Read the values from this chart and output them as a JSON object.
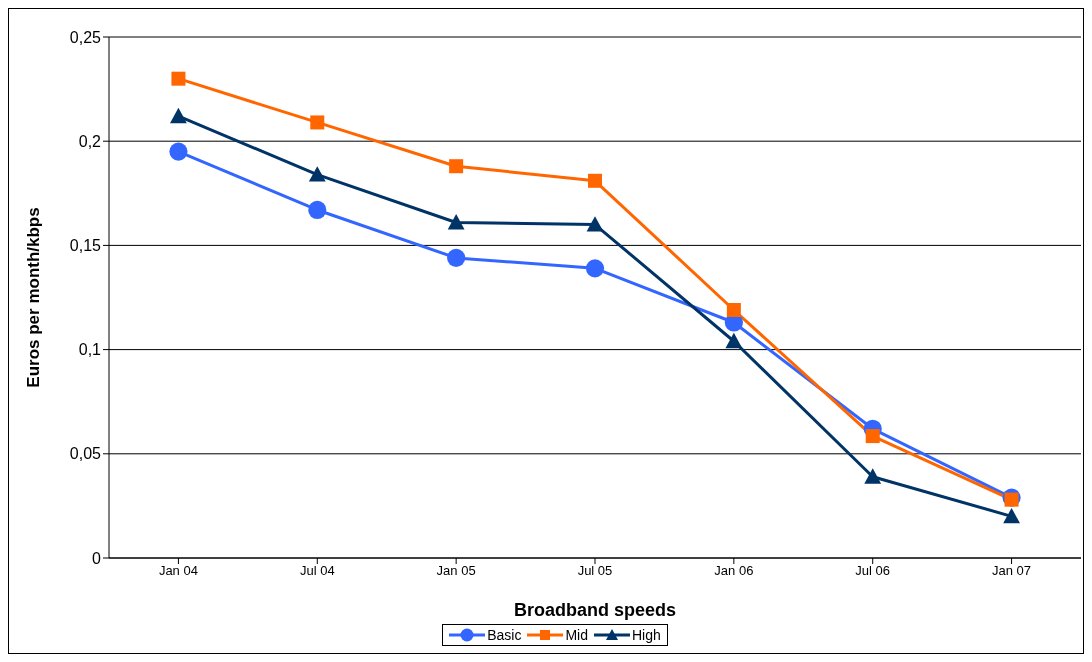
{
  "chart_data": {
    "type": "line",
    "xlabel": "Broadband speeds",
    "ylabel": "Euros per month/kbps",
    "categories": [
      "Jan 04",
      "Jul 04",
      "Jan 05",
      "Jul 05",
      "Jan 06",
      "Jul 06",
      "Jan 07"
    ],
    "series": [
      {
        "name": "Basic",
        "color": "#3366ff",
        "marker": "circle",
        "values": [
          0.195,
          0.167,
          0.144,
          0.139,
          0.113,
          0.062,
          0.029
        ]
      },
      {
        "name": "Mid",
        "color": "#ff6600",
        "marker": "square",
        "values": [
          0.23,
          0.209,
          0.188,
          0.181,
          0.119,
          0.0585,
          0.028
        ]
      },
      {
        "name": "High",
        "color": "#003366",
        "marker": "triangle",
        "values": [
          0.212,
          0.184,
          0.161,
          0.16,
          0.104,
          0.039,
          0.02
        ]
      }
    ],
    "ylim": [
      0,
      0.25
    ],
    "yticks": [
      {
        "value": 0,
        "label": "0"
      },
      {
        "value": 0.05,
        "label": "0,05"
      },
      {
        "value": 0.1,
        "label": "0,1"
      },
      {
        "value": 0.15,
        "label": "0,15"
      },
      {
        "value": 0.2,
        "label": "0,2"
      },
      {
        "value": 0.25,
        "label": "0,25"
      }
    ],
    "grid": "y",
    "legend": "bottom",
    "line_style": "solid"
  }
}
